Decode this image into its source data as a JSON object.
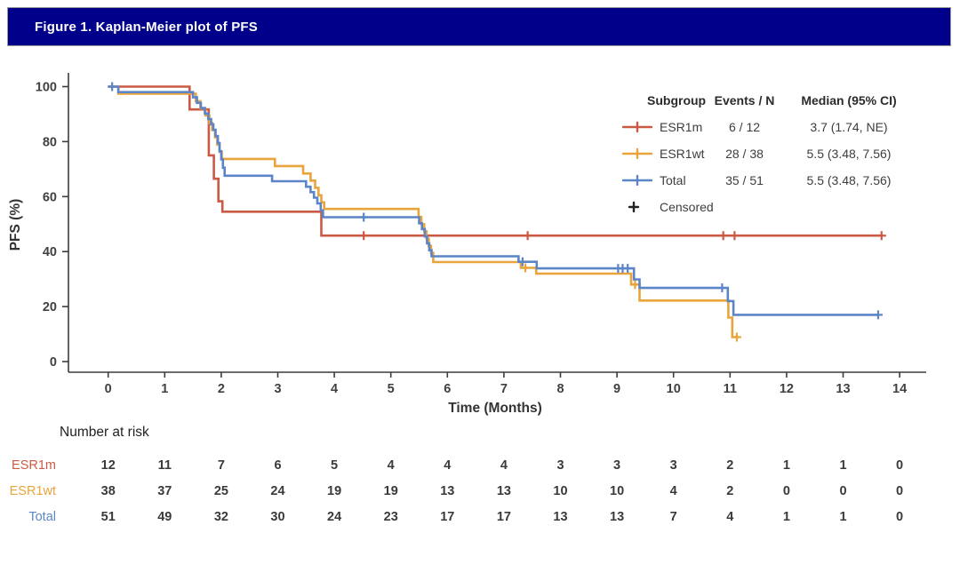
{
  "header": {
    "title": "Figure 1. Kaplan-Meier plot of PFS",
    "bar_color": "#00008B"
  },
  "chart_data": {
    "type": "line",
    "subtype": "kaplan-meier-step",
    "xlabel": "Time (Months)",
    "ylabel": "PFS (%)",
    "xlim": [
      0,
      14
    ],
    "ylim": [
      0,
      100
    ],
    "xticks": [
      0,
      1,
      2,
      3,
      4,
      5,
      6,
      7,
      8,
      9,
      10,
      11,
      12,
      13,
      14
    ],
    "yticks": [
      0,
      20,
      40,
      60,
      80,
      100
    ],
    "grid": false,
    "legend": {
      "position": "top-right",
      "headers": [
        "Subgroup",
        "Events / N",
        "Median (95% CI)"
      ],
      "censored_label": "Censored",
      "censored_color": "#222222"
    },
    "series": [
      {
        "name": "ESR1m",
        "color": "#CB5A44",
        "events_n": "6 / 12",
        "median_ci": "3.7 (1.74, NE)",
        "points": [
          [
            0,
            100
          ],
          [
            1.44,
            91.7
          ],
          [
            1.78,
            75.0
          ],
          [
            1.87,
            66.5
          ],
          [
            1.95,
            58.3
          ],
          [
            2.02,
            54.5
          ],
          [
            3.77,
            45.8
          ],
          [
            13.68,
            45.8
          ]
        ],
        "censors": [
          [
            4.52,
            45.8
          ],
          [
            7.42,
            45.8
          ],
          [
            10.88,
            45.8
          ],
          [
            11.08,
            45.8
          ],
          [
            13.68,
            45.8
          ]
        ]
      },
      {
        "name": "ESR1wt",
        "color": "#E9A43C",
        "events_n": "28 / 38",
        "median_ci": "5.5 (3.48, 7.56)",
        "points": [
          [
            0,
            100
          ],
          [
            0.18,
            97.4
          ],
          [
            1.55,
            94.7
          ],
          [
            1.63,
            92.1
          ],
          [
            1.72,
            89.5
          ],
          [
            1.79,
            86.8
          ],
          [
            1.84,
            84.2
          ],
          [
            1.89,
            81.6
          ],
          [
            1.93,
            78.9
          ],
          [
            1.97,
            76.3
          ],
          [
            2.01,
            73.7
          ],
          [
            2.95,
            71.1
          ],
          [
            3.45,
            68.4
          ],
          [
            3.58,
            65.8
          ],
          [
            3.66,
            63.2
          ],
          [
            3.72,
            60.5
          ],
          [
            3.77,
            57.9
          ],
          [
            3.82,
            55.5
          ],
          [
            5.49,
            52.6
          ],
          [
            5.54,
            50.0
          ],
          [
            5.59,
            47.4
          ],
          [
            5.63,
            44.7
          ],
          [
            5.67,
            42.1
          ],
          [
            5.71,
            39.5
          ],
          [
            5.75,
            36.2
          ],
          [
            7.3,
            34.1
          ],
          [
            7.57,
            32.0
          ],
          [
            9.25,
            28.0
          ],
          [
            9.4,
            22.2
          ],
          [
            10.97,
            16.0
          ],
          [
            11.04,
            8.9
          ],
          [
            11.15,
            8.9
          ]
        ],
        "censors": [
          [
            7.38,
            34.1
          ],
          [
            9.32,
            28.0
          ],
          [
            11.12,
            8.9
          ]
        ]
      },
      {
        "name": "Total",
        "color": "#5C85C7",
        "events_n": "35 / 51",
        "median_ci": "5.5 (3.48, 7.56)",
        "points": [
          [
            0,
            100
          ],
          [
            0.18,
            98.0
          ],
          [
            1.5,
            96.1
          ],
          [
            1.57,
            94.1
          ],
          [
            1.64,
            92.2
          ],
          [
            1.71,
            90.2
          ],
          [
            1.77,
            88.2
          ],
          [
            1.82,
            86.3
          ],
          [
            1.86,
            84.3
          ],
          [
            1.9,
            82.0
          ],
          [
            1.94,
            79.5
          ],
          [
            1.97,
            76.5
          ],
          [
            2.0,
            73.5
          ],
          [
            2.03,
            70.5
          ],
          [
            2.06,
            67.6
          ],
          [
            2.9,
            65.6
          ],
          [
            3.5,
            63.6
          ],
          [
            3.58,
            61.6
          ],
          [
            3.64,
            59.6
          ],
          [
            3.7,
            57.5
          ],
          [
            3.76,
            55.0
          ],
          [
            3.8,
            52.5
          ],
          [
            5.5,
            50.3
          ],
          [
            5.55,
            48.2
          ],
          [
            5.6,
            45.5
          ],
          [
            5.64,
            43.0
          ],
          [
            5.68,
            40.5
          ],
          [
            5.72,
            38.3
          ],
          [
            7.26,
            36.3
          ],
          [
            7.58,
            33.9
          ],
          [
            9.3,
            29.9
          ],
          [
            9.4,
            26.8
          ],
          [
            10.96,
            22.0
          ],
          [
            11.06,
            17.0
          ],
          [
            13.62,
            17.0
          ]
        ],
        "censors": [
          [
            0.07,
            100
          ],
          [
            4.52,
            52.5
          ],
          [
            7.33,
            36.3
          ],
          [
            9.02,
            33.9
          ],
          [
            9.1,
            33.9
          ],
          [
            9.19,
            33.9
          ],
          [
            10.86,
            26.8
          ],
          [
            13.62,
            17.0
          ]
        ]
      }
    ],
    "risk_table": {
      "title": "Number at risk",
      "months": [
        0,
        1,
        2,
        3,
        4,
        5,
        6,
        7,
        8,
        9,
        10,
        11,
        12,
        13,
        14
      ],
      "rows": [
        {
          "label": "ESR1m",
          "color": "#CB5A44",
          "values": [
            12,
            11,
            7,
            6,
            5,
            4,
            4,
            4,
            3,
            3,
            3,
            2,
            1,
            1,
            0
          ]
        },
        {
          "label": "ESR1wt",
          "color": "#E9A43C",
          "values": [
            38,
            37,
            25,
            24,
            19,
            19,
            13,
            13,
            10,
            10,
            4,
            2,
            0,
            0,
            0
          ]
        },
        {
          "label": "Total",
          "color": "#5C85C7",
          "values": [
            51,
            49,
            32,
            30,
            24,
            23,
            17,
            17,
            13,
            13,
            7,
            4,
            1,
            1,
            0
          ]
        }
      ]
    }
  }
}
